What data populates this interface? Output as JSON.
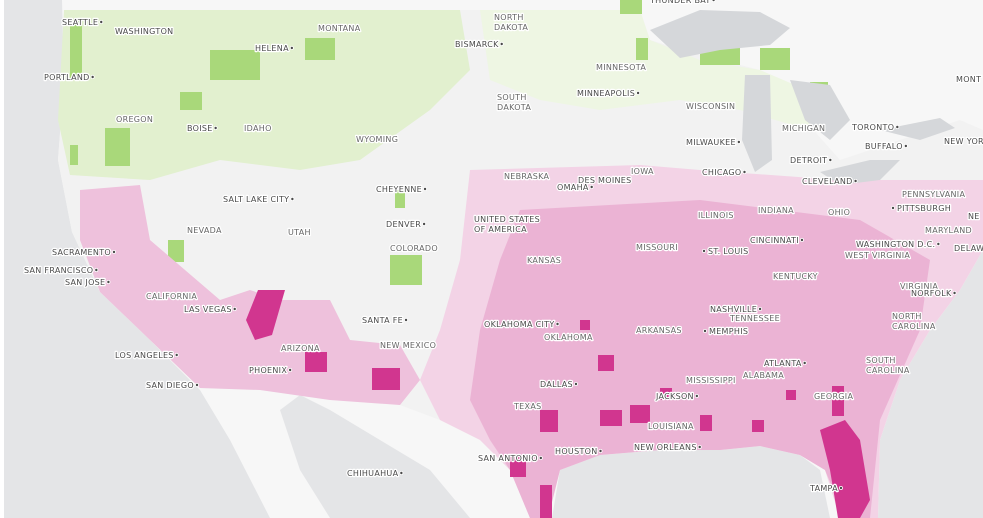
{
  "labels": [
    "THUNDER BAY",
    "SEATTLE",
    "WASHINGTON",
    "MONTANA",
    [
      "NORTH",
      "DAKOTA"
    ],
    "BISMARCK",
    "HELENA",
    "PORTLAND",
    "MINNESOTA",
    [
      "SOUTH",
      "DAKOTA"
    ],
    "MINNEAPOLIS",
    "WISCONSIN",
    "OREGON",
    "BOISE",
    "IDAHO",
    "WYOMING",
    "MICHIGAN",
    "TORONTO",
    "MILWAUKEE",
    "BUFFALO",
    "NEW YOR",
    "DETROIT",
    "NEBRASKA",
    "IOWA",
    "CHICAGO",
    "DES MOINES",
    "OMAHA",
    "CLEVELAND",
    "CHEYENNE",
    "PENNSYLVANIA",
    "SALT LAKE CITY",
    "PITTSBURGH",
    [
      "UNITED STATES",
      "OF AMERICA"
    ],
    "ILLINOIS",
    "INDIANA",
    "OHIO",
    "DENVER",
    "NEVADA",
    "UTAH",
    "MARYLAND",
    "COLORADO",
    "MISSOURI",
    "ST. LOUIS",
    "CINCINNATI",
    "WASHINGTON D.C.",
    "DELAWA",
    "WEST VIRGINIA",
    "SACRAMENTO",
    "KANSAS",
    "SAN FRANCISCO",
    "SAN JOSE",
    "KENTUCKY",
    "VIRGINIA",
    "NORFOLK",
    "CALIFORNIA",
    "LAS VEGAS",
    "NASHVILLE",
    "TENNESSEE",
    "SANTA FE",
    "OKLAHOMA CITY",
    [
      "NORTH",
      "CAROLINA"
    ],
    "OKLAHOMA",
    "ARKANSAS",
    "MEMPHIS",
    "ARIZONA",
    "NEW MEXICO",
    "LOS ANGELES",
    "ATLANTA",
    [
      "SOUTH",
      "CAROLINA"
    ],
    "ALABAMA",
    "PHOENIX",
    "MISSISSIPPI",
    "SAN DIEGO",
    "DALLAS",
    "GEORGIA",
    "JACKSON",
    "TEXAS",
    "LOUISIANA",
    "NEW ORLEANS",
    "HOUSTON",
    "SAN ANTONIO",
    "CHIHUAHUA",
    "TAMPA",
    "MONT",
    "NE"
  ]
}
